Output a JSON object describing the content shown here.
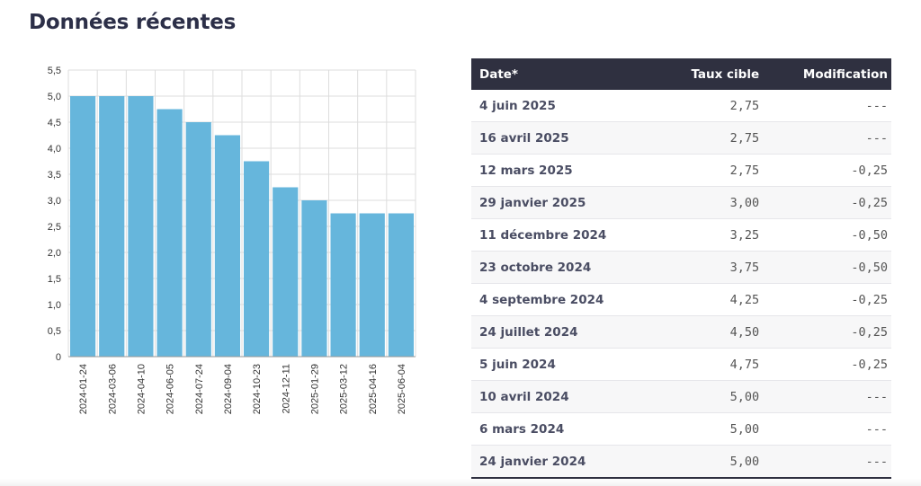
{
  "page": {
    "title": "Données récentes"
  },
  "chart_data": {
    "type": "bar",
    "categories": [
      "2024-01-24",
      "2024-03-06",
      "2024-04-10",
      "2024-06-05",
      "2024-07-24",
      "2024-09-04",
      "2024-10-23",
      "2024-12-11",
      "2025-01-29",
      "2025-03-12",
      "2025-04-16",
      "2025-06-04"
    ],
    "values": [
      5.0,
      5.0,
      5.0,
      4.75,
      4.5,
      4.25,
      3.75,
      3.25,
      3.0,
      2.75,
      2.75,
      2.75
    ],
    "ylim": [
      0,
      5.5
    ],
    "yticks": [
      0,
      0.5,
      1.0,
      1.5,
      2.0,
      2.5,
      3.0,
      3.5,
      4.0,
      4.5,
      5.0,
      5.5
    ],
    "ytick_labels": [
      "0",
      "0,5",
      "1,0",
      "1,5",
      "2,0",
      "2,5",
      "3,0",
      "3,5",
      "4,0",
      "4,5",
      "5,0",
      "5,5"
    ],
    "grid": true,
    "bar_color": "#66b6dc",
    "grid_color": "#dddddd",
    "axis_color": "#999999"
  },
  "table": {
    "headers": {
      "date": "Date*",
      "rate": "Taux cible",
      "change": "Modification"
    },
    "rows": [
      {
        "date": "4 juin 2025",
        "rate": "2,75",
        "change": "---"
      },
      {
        "date": "16 avril 2025",
        "rate": "2,75",
        "change": "---"
      },
      {
        "date": "12 mars 2025",
        "rate": "2,75",
        "change": "-0,25"
      },
      {
        "date": "29 janvier 2025",
        "rate": "3,00",
        "change": "-0,25"
      },
      {
        "date": "11 décembre 2024",
        "rate": "3,25",
        "change": "-0,50"
      },
      {
        "date": "23 octobre 2024",
        "rate": "3,75",
        "change": "-0,50"
      },
      {
        "date": "4 septembre 2024",
        "rate": "4,25",
        "change": "-0,25"
      },
      {
        "date": "24 juillet 2024",
        "rate": "4,50",
        "change": "-0,25"
      },
      {
        "date": "5 juin 2024",
        "rate": "4,75",
        "change": "-0,25"
      },
      {
        "date": "10 avril 2024",
        "rate": "5,00",
        "change": "---"
      },
      {
        "date": "6 mars 2024",
        "rate": "5,00",
        "change": "---"
      },
      {
        "date": "24 janvier 2024",
        "rate": "5,00",
        "change": "---"
      }
    ]
  }
}
